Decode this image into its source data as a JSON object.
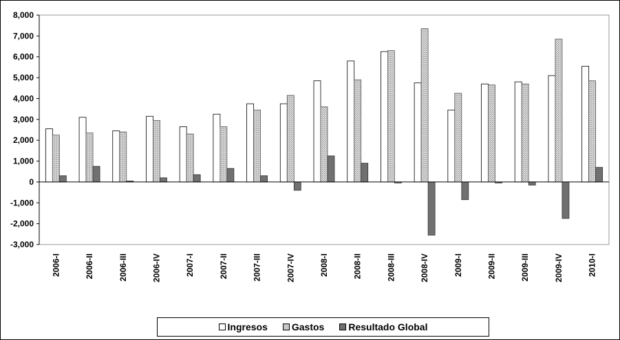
{
  "chart_data": {
    "type": "bar",
    "categories": [
      "2006-I",
      "2006-II",
      "2006-III",
      "2006-IV",
      "2007-I",
      "2007-II",
      "2007-III",
      "2007-IV",
      "2008-I",
      "2008-II",
      "2008-III",
      "2008-IV",
      "2009-I",
      "2009-II",
      "2009-III",
      "2009-IV",
      "2010-I"
    ],
    "series": [
      {
        "name": "Ingresos",
        "values": [
          2550,
          3100,
          2450,
          3150,
          2650,
          3250,
          3750,
          3750,
          4850,
          5800,
          6250,
          4750,
          3450,
          4700,
          4800,
          5100,
          5550
        ]
      },
      {
        "name": "Gastos",
        "values": [
          2250,
          2350,
          2400,
          2950,
          2300,
          2650,
          3450,
          4150,
          3600,
          4900,
          6300,
          7350,
          4250,
          4650,
          4700,
          6850,
          4850
        ]
      },
      {
        "name": "Resultado Global",
        "values": [
          300,
          750,
          50,
          200,
          350,
          650,
          300,
          -400,
          1250,
          900,
          -50,
          -2550,
          -850,
          -50,
          -150,
          -1750,
          700
        ]
      }
    ],
    "y_ticks": [
      "8,000",
      "7,000",
      "6,000",
      "5,000",
      "4,000",
      "3,000",
      "2,000",
      "1,000",
      "0",
      "-1,000",
      "-2,000",
      "-3,000"
    ],
    "ylim": [
      -3000,
      8000
    ],
    "legend_position": "bottom",
    "colors": {
      "Ingresos": "#ffffff",
      "Gastos": "#c8c8c8",
      "Resultado Global": "#707070"
    }
  },
  "legend": {
    "items": [
      {
        "label": "Ingresos"
      },
      {
        "label": "Gastos"
      },
      {
        "label": "Resultado Global"
      }
    ]
  }
}
